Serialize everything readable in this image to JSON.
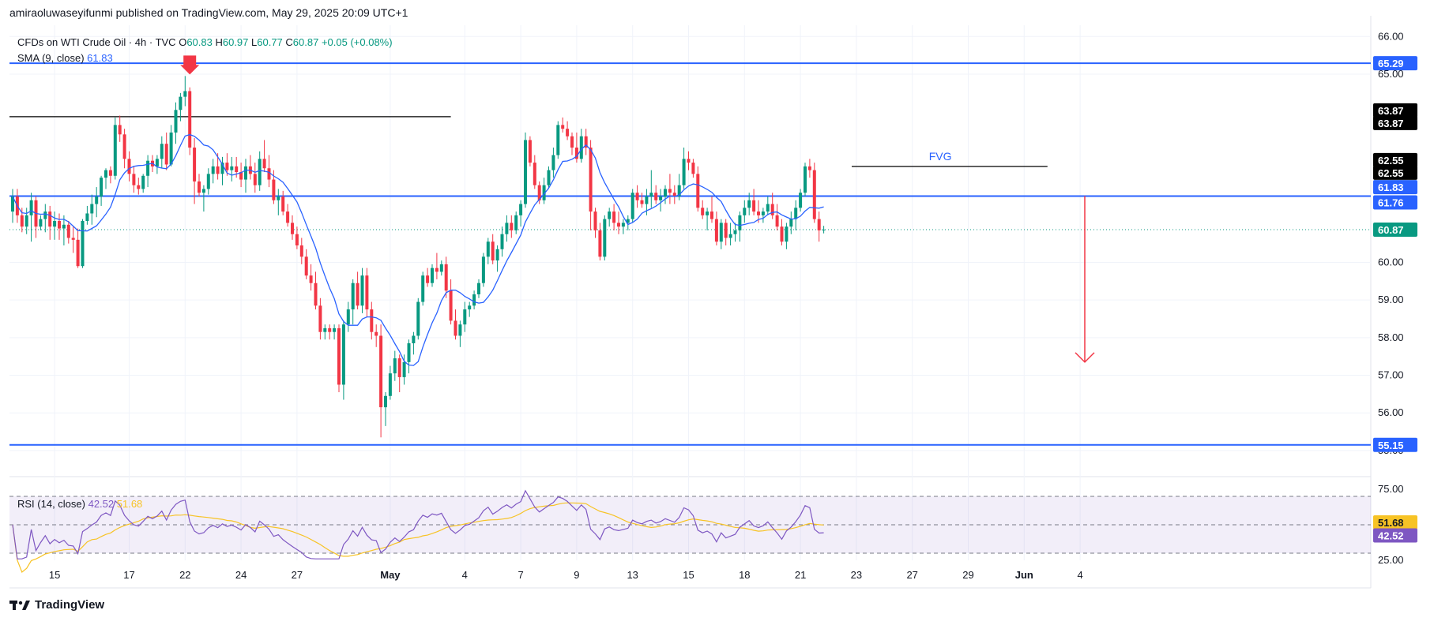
{
  "header": {
    "published": "amiraoluwaseyifunmi published on TradingView.com, May 29, 2025 20:09 UTC+1"
  },
  "legend": {
    "symbol": "CFDs on WTI Crude Oil · 4h · TVC",
    "o_label": "O",
    "o_value": "60.83",
    "h_label": "H",
    "h_value": "60.97",
    "l_label": "L",
    "l_value": "60.77",
    "c_label": "C",
    "c_value": "60.87",
    "change": "+0.05 (+0.08%)",
    "sma_label": "SMA (9, close)",
    "sma_value": "61.83",
    "rsi_label": "RSI (14, close)",
    "rsi_value": "42.52",
    "rsi_ma_value": "51.68"
  },
  "annotation_fvg": "FVG",
  "footer": {
    "brand": "TradingView"
  },
  "colors": {
    "up": "#089981",
    "down": "#f23645",
    "sma": "#2962ff",
    "level": "#2962ff",
    "rsi": "#7e57c2",
    "rsi_ma": "#f7c325",
    "grid": "#f0f3fa",
    "text": "#131722"
  },
  "chart_data": [
    {
      "type": "candlestick",
      "title": "CFDs on WTI Crude Oil · 4h · TVC",
      "ylim": [
        54.6,
        66.3
      ],
      "y_ticks": [
        "55.00",
        "56.00",
        "57.00",
        "58.00",
        "59.00",
        "60.00",
        "65.00",
        "66.00"
      ],
      "x_ticks": [
        {
          "label": "15",
          "bar": 9
        },
        {
          "label": "17",
          "bar": 25
        },
        {
          "label": "22",
          "bar": 37
        },
        {
          "label": "24",
          "bar": 49
        },
        {
          "label": "27",
          "bar": 61
        },
        {
          "label": "May",
          "bar": 81
        },
        {
          "label": "4",
          "bar": 97
        },
        {
          "label": "7",
          "bar": 109
        },
        {
          "label": "9",
          "bar": 121
        },
        {
          "label": "13",
          "bar": 133
        },
        {
          "label": "15",
          "bar": 145
        },
        {
          "label": "18",
          "bar": 157
        },
        {
          "label": "21",
          "bar": 169
        },
        {
          "label": "23",
          "bar": 181
        },
        {
          "label": "27",
          "bar": 193
        },
        {
          "label": "29",
          "bar": 205
        },
        {
          "label": "Jun",
          "bar": 217
        },
        {
          "label": "4",
          "bar": 229
        }
      ],
      "price_labels": [
        {
          "value": 65.29,
          "text": "65.29",
          "bg": "#2962ff"
        },
        {
          "value": 63.87,
          "text": "63.87",
          "bg": "#000000",
          "offset": -8
        },
        {
          "value": 63.87,
          "text": "63.87",
          "bg": "#000000",
          "offset": 8
        },
        {
          "value": 62.55,
          "text": "62.55",
          "bg": "#000000",
          "offset": -8
        },
        {
          "value": 62.55,
          "text": "62.55",
          "bg": "#000000",
          "offset": 8
        },
        {
          "value": 61.83,
          "text": "61.83",
          "bg": "#2962ff",
          "offset": -8
        },
        {
          "value": 61.76,
          "text": "61.76",
          "bg": "#2962ff",
          "offset": 8
        },
        {
          "value": 60.87,
          "text": "60.87",
          "bg": "#089981"
        },
        {
          "value": 55.15,
          "text": "55.15",
          "bg": "#2962ff"
        }
      ],
      "levels": [
        65.29,
        61.76,
        55.15
      ],
      "last_close": 60.87,
      "candles": [
        [
          61.35,
          61.95,
          61.05,
          61.75
        ],
        [
          61.75,
          61.95,
          61.05,
          61.25
        ],
        [
          61.25,
          61.45,
          60.8,
          60.95
        ],
        [
          60.95,
          61.45,
          60.75,
          61.25
        ],
        [
          61.25,
          61.85,
          60.55,
          61.65
        ],
        [
          61.65,
          61.75,
          60.65,
          60.95
        ],
        [
          60.95,
          61.25,
          60.85,
          61.15
        ],
        [
          61.15,
          61.55,
          60.8,
          61.35
        ],
        [
          61.35,
          61.5,
          60.6,
          60.95
        ],
        [
          60.95,
          61.35,
          60.6,
          61.1
        ],
        [
          61.1,
          61.3,
          60.6,
          60.9
        ],
        [
          60.9,
          61.25,
          60.45,
          61.0
        ],
        [
          61.0,
          61.1,
          60.5,
          60.65
        ],
        [
          60.65,
          60.95,
          60.25,
          60.6
        ],
        [
          60.6,
          60.9,
          59.85,
          59.9
        ],
        [
          59.9,
          61.15,
          59.85,
          61.1
        ],
        [
          61.1,
          61.5,
          61.0,
          61.3
        ],
        [
          61.3,
          61.8,
          61.0,
          61.55
        ],
        [
          61.55,
          62.0,
          61.2,
          61.75
        ],
        [
          61.75,
          62.3,
          61.5,
          62.25
        ],
        [
          62.25,
          62.5,
          61.95,
          62.45
        ],
        [
          62.45,
          62.55,
          62.1,
          62.3
        ],
        [
          62.3,
          63.85,
          62.2,
          63.65
        ],
        [
          63.65,
          63.9,
          63.2,
          63.4
        ],
        [
          63.4,
          63.55,
          62.5,
          62.75
        ],
        [
          62.75,
          62.95,
          62.15,
          62.35
        ],
        [
          62.35,
          62.55,
          61.85,
          62.05
        ],
        [
          62.05,
          62.25,
          61.8,
          61.95
        ],
        [
          61.95,
          62.35,
          61.85,
          62.3
        ],
        [
          62.3,
          62.85,
          62.0,
          62.7
        ],
        [
          62.7,
          62.85,
          62.4,
          62.55
        ],
        [
          62.55,
          62.85,
          62.35,
          62.75
        ],
        [
          62.75,
          63.35,
          62.5,
          63.15
        ],
        [
          63.15,
          63.45,
          62.45,
          62.6
        ],
        [
          62.6,
          63.65,
          62.55,
          63.45
        ],
        [
          63.45,
          64.25,
          63.15,
          64.05
        ],
        [
          64.05,
          64.5,
          63.75,
          64.4
        ],
        [
          64.4,
          64.95,
          64.15,
          64.55
        ],
        [
          64.55,
          64.65,
          62.85,
          63.05
        ],
        [
          63.05,
          63.3,
          61.55,
          62.15
        ],
        [
          62.15,
          62.35,
          61.75,
          61.85
        ],
        [
          61.85,
          62.05,
          61.35,
          61.95
        ],
        [
          61.95,
          62.5,
          61.8,
          62.35
        ],
        [
          62.35,
          62.75,
          62.1,
          62.55
        ],
        [
          62.55,
          62.9,
          62.2,
          62.35
        ],
        [
          62.35,
          62.8,
          62.05,
          62.65
        ],
        [
          62.65,
          62.9,
          62.3,
          62.45
        ],
        [
          62.45,
          62.8,
          62.15,
          62.55
        ],
        [
          62.55,
          62.8,
          62.25,
          62.4
        ],
        [
          62.4,
          62.65,
          62.0,
          62.2
        ],
        [
          62.2,
          62.75,
          61.85,
          62.55
        ],
        [
          62.55,
          62.85,
          62.2,
          62.35
        ],
        [
          62.35,
          62.65,
          61.85,
          62.05
        ],
        [
          62.05,
          62.95,
          61.9,
          62.75
        ],
        [
          62.75,
          63.25,
          62.4,
          62.5
        ],
        [
          62.5,
          62.85,
          62.0,
          62.2
        ],
        [
          62.2,
          62.45,
          61.55,
          61.65
        ],
        [
          61.65,
          61.95,
          61.25,
          61.75
        ],
        [
          61.75,
          61.9,
          61.25,
          61.35
        ],
        [
          61.35,
          61.55,
          60.95,
          61.05
        ],
        [
          61.05,
          61.25,
          60.6,
          60.75
        ],
        [
          60.75,
          60.95,
          60.35,
          60.45
        ],
        [
          60.45,
          60.65,
          59.95,
          60.15
        ],
        [
          60.15,
          60.35,
          59.55,
          59.65
        ],
        [
          59.65,
          59.95,
          59.25,
          59.45
        ],
        [
          59.45,
          59.75,
          58.75,
          58.85
        ],
        [
          58.85,
          59.05,
          57.95,
          58.15
        ],
        [
          58.15,
          58.35,
          57.95,
          58.25
        ],
        [
          58.25,
          58.35,
          57.95,
          58.15
        ],
        [
          58.15,
          58.35,
          57.95,
          58.25
        ],
        [
          58.25,
          58.35,
          56.55,
          56.75
        ],
        [
          56.75,
          58.45,
          56.35,
          58.35
        ],
        [
          58.35,
          58.95,
          58.15,
          58.75
        ],
        [
          58.75,
          59.55,
          58.35,
          59.45
        ],
        [
          59.45,
          59.75,
          58.75,
          58.85
        ],
        [
          58.85,
          59.85,
          58.65,
          59.65
        ],
        [
          59.65,
          59.85,
          58.55,
          58.75
        ],
        [
          58.75,
          58.95,
          57.95,
          58.15
        ],
        [
          58.15,
          58.35,
          57.75,
          58.05
        ],
        [
          58.05,
          58.35,
          55.35,
          56.15
        ],
        [
          56.15,
          56.55,
          55.65,
          56.45
        ],
        [
          56.45,
          57.25,
          56.35,
          57.05
        ],
        [
          57.05,
          57.65,
          56.85,
          57.45
        ],
        [
          57.45,
          57.55,
          56.55,
          56.95
        ],
        [
          56.95,
          57.55,
          56.75,
          57.35
        ],
        [
          57.35,
          57.95,
          57.05,
          57.85
        ],
        [
          57.85,
          58.15,
          57.55,
          58.05
        ],
        [
          58.05,
          59.05,
          57.95,
          58.95
        ],
        [
          58.95,
          59.75,
          58.85,
          59.65
        ],
        [
          59.65,
          59.85,
          59.35,
          59.45
        ],
        [
          59.45,
          59.95,
          59.35,
          59.85
        ],
        [
          59.85,
          60.25,
          59.55,
          59.75
        ],
        [
          59.75,
          60.05,
          59.65,
          59.95
        ],
        [
          59.95,
          60.15,
          59.05,
          59.25
        ],
        [
          59.25,
          59.55,
          58.35,
          58.45
        ],
        [
          58.45,
          58.75,
          57.95,
          58.05
        ],
        [
          58.05,
          58.45,
          57.75,
          58.35
        ],
        [
          58.35,
          58.95,
          58.15,
          58.75
        ],
        [
          58.75,
          58.95,
          58.55,
          58.85
        ],
        [
          58.85,
          59.25,
          58.75,
          59.15
        ],
        [
          59.15,
          59.55,
          59.05,
          59.45
        ],
        [
          59.45,
          60.25,
          59.35,
          60.15
        ],
        [
          60.15,
          60.65,
          59.95,
          60.55
        ],
        [
          60.55,
          60.75,
          59.95,
          60.05
        ],
        [
          60.05,
          60.45,
          59.75,
          60.35
        ],
        [
          60.35,
          60.95,
          60.15,
          60.75
        ],
        [
          60.75,
          61.25,
          60.55,
          61.05
        ],
        [
          61.05,
          61.25,
          60.65,
          60.85
        ],
        [
          60.85,
          61.35,
          60.75,
          61.25
        ],
        [
          61.25,
          61.65,
          60.95,
          61.55
        ],
        [
          61.55,
          63.45,
          61.45,
          63.25
        ],
        [
          63.25,
          63.35,
          62.55,
          62.65
        ],
        [
          62.65,
          62.85,
          61.95,
          62.05
        ],
        [
          62.05,
          62.15,
          61.55,
          61.65
        ],
        [
          61.65,
          62.25,
          61.55,
          62.05
        ],
        [
          62.05,
          62.55,
          61.95,
          62.45
        ],
        [
          62.45,
          63.05,
          62.25,
          62.85
        ],
        [
          62.85,
          63.75,
          62.75,
          63.65
        ],
        [
          63.65,
          63.85,
          63.45,
          63.55
        ],
        [
          63.55,
          63.75,
          63.25,
          63.35
        ],
        [
          63.35,
          63.45,
          62.85,
          63.05
        ],
        [
          63.05,
          63.45,
          62.65,
          62.75
        ],
        [
          62.75,
          63.55,
          62.65,
          63.35
        ],
        [
          63.35,
          63.55,
          62.85,
          63.05
        ],
        [
          63.05,
          63.25,
          60.85,
          61.35
        ],
        [
          61.35,
          61.45,
          60.65,
          60.85
        ],
        [
          60.85,
          61.05,
          60.05,
          60.15
        ],
        [
          60.15,
          61.25,
          60.05,
          61.15
        ],
        [
          61.15,
          61.45,
          60.95,
          61.35
        ],
        [
          61.35,
          61.55,
          60.85,
          61.05
        ],
        [
          61.05,
          61.35,
          60.75,
          60.95
        ],
        [
          60.95,
          61.15,
          60.75,
          61.05
        ],
        [
          61.05,
          61.25,
          60.85,
          61.15
        ],
        [
          61.15,
          61.95,
          61.05,
          61.85
        ],
        [
          61.85,
          62.05,
          61.45,
          61.65
        ],
        [
          61.65,
          61.85,
          61.45,
          61.55
        ],
        [
          61.55,
          61.95,
          61.25,
          61.75
        ],
        [
          61.75,
          62.45,
          61.45,
          61.85
        ],
        [
          61.85,
          62.05,
          61.55,
          61.65
        ],
        [
          61.65,
          61.95,
          61.35,
          61.75
        ],
        [
          61.75,
          62.05,
          61.55,
          61.95
        ],
        [
          61.95,
          62.35,
          61.55,
          61.85
        ],
        [
          61.85,
          62.05,
          61.55,
          61.75
        ],
        [
          61.75,
          62.35,
          61.65,
          62.05
        ],
        [
          62.05,
          63.05,
          61.95,
          62.75
        ],
        [
          62.75,
          62.95,
          62.45,
          62.65
        ],
        [
          62.65,
          62.75,
          62.25,
          62.35
        ],
        [
          62.35,
          62.55,
          61.35,
          61.45
        ],
        [
          61.45,
          61.65,
          61.15,
          61.25
        ],
        [
          61.25,
          61.45,
          60.85,
          61.35
        ],
        [
          61.35,
          61.75,
          61.05,
          61.15
        ],
        [
          61.15,
          61.35,
          60.45,
          60.55
        ],
        [
          60.55,
          61.15,
          60.35,
          61.05
        ],
        [
          61.05,
          61.15,
          60.45,
          60.65
        ],
        [
          60.65,
          61.05,
          60.45,
          60.75
        ],
        [
          60.75,
          61.05,
          60.55,
          60.85
        ],
        [
          60.85,
          61.35,
          60.55,
          61.25
        ],
        [
          61.25,
          61.65,
          61.05,
          61.45
        ],
        [
          61.45,
          61.85,
          61.25,
          61.65
        ],
        [
          61.65,
          61.95,
          61.25,
          61.35
        ],
        [
          61.35,
          61.65,
          61.05,
          61.25
        ],
        [
          61.25,
          61.45,
          61.05,
          61.35
        ],
        [
          61.35,
          61.75,
          61.25,
          61.55
        ],
        [
          61.55,
          61.85,
          61.15,
          61.25
        ],
        [
          61.25,
          61.55,
          60.85,
          60.95
        ],
        [
          60.95,
          61.15,
          60.45,
          60.55
        ],
        [
          60.55,
          61.05,
          60.35,
          60.95
        ],
        [
          60.95,
          61.35,
          60.75,
          61.15
        ],
        [
          61.15,
          61.65,
          60.85,
          61.45
        ],
        [
          61.45,
          61.95,
          61.35,
          61.85
        ],
        [
          61.85,
          62.65,
          61.75,
          62.55
        ],
        [
          62.55,
          62.75,
          62.25,
          62.45
        ],
        [
          62.45,
          62.65,
          61.05,
          61.15
        ],
        [
          61.15,
          61.35,
          60.55,
          60.85
        ],
        [
          60.85,
          60.97,
          60.77,
          60.87
        ]
      ],
      "sma": {
        "name": "SMA (9, close)",
        "period": 9
      }
    },
    {
      "type": "line",
      "title": "RSI (14, close)",
      "ylim": [
        25,
        75
      ],
      "y_ticks": [
        "25.00",
        "75.00"
      ],
      "bands": [
        70,
        50,
        30
      ],
      "rsi_labels": [
        {
          "value": 51.68,
          "text": "51.68",
          "bg": "#f7c325"
        },
        {
          "value": 42.52,
          "text": "42.52",
          "bg": "#7e57c2"
        }
      ],
      "series": [
        {
          "name": "RSI"
        },
        {
          "name": "RSI-based MA"
        }
      ]
    }
  ]
}
